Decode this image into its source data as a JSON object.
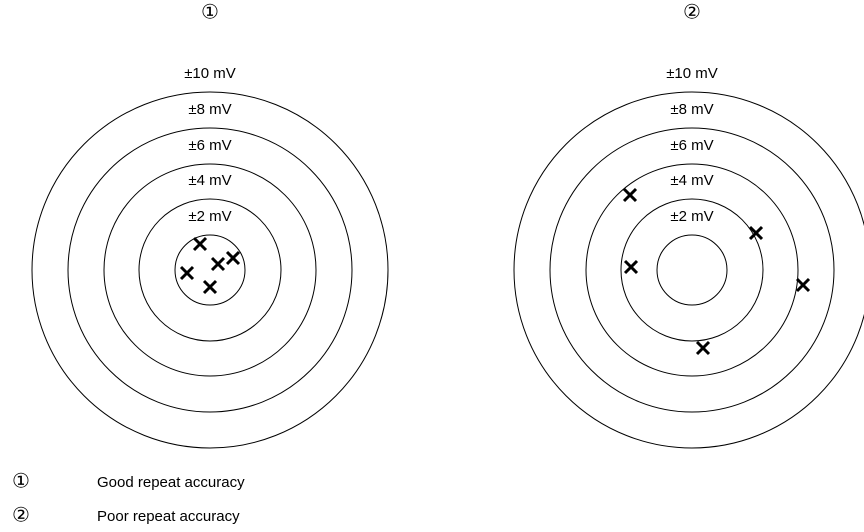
{
  "targets": [
    {
      "marker": "①",
      "rings": [
        "±10 mV",
        "±8 mV",
        "±6 mV",
        "±4 mV",
        "±2 mV"
      ]
    },
    {
      "marker": "②",
      "rings": [
        "±10 mV",
        "±8 mV",
        "±6 mV",
        "±4 mV",
        "±2 mV"
      ]
    }
  ],
  "legend": [
    {
      "marker": "①",
      "text": "Good repeat accuracy"
    },
    {
      "marker": "②",
      "text": "Poor repeat accuracy"
    }
  ]
}
